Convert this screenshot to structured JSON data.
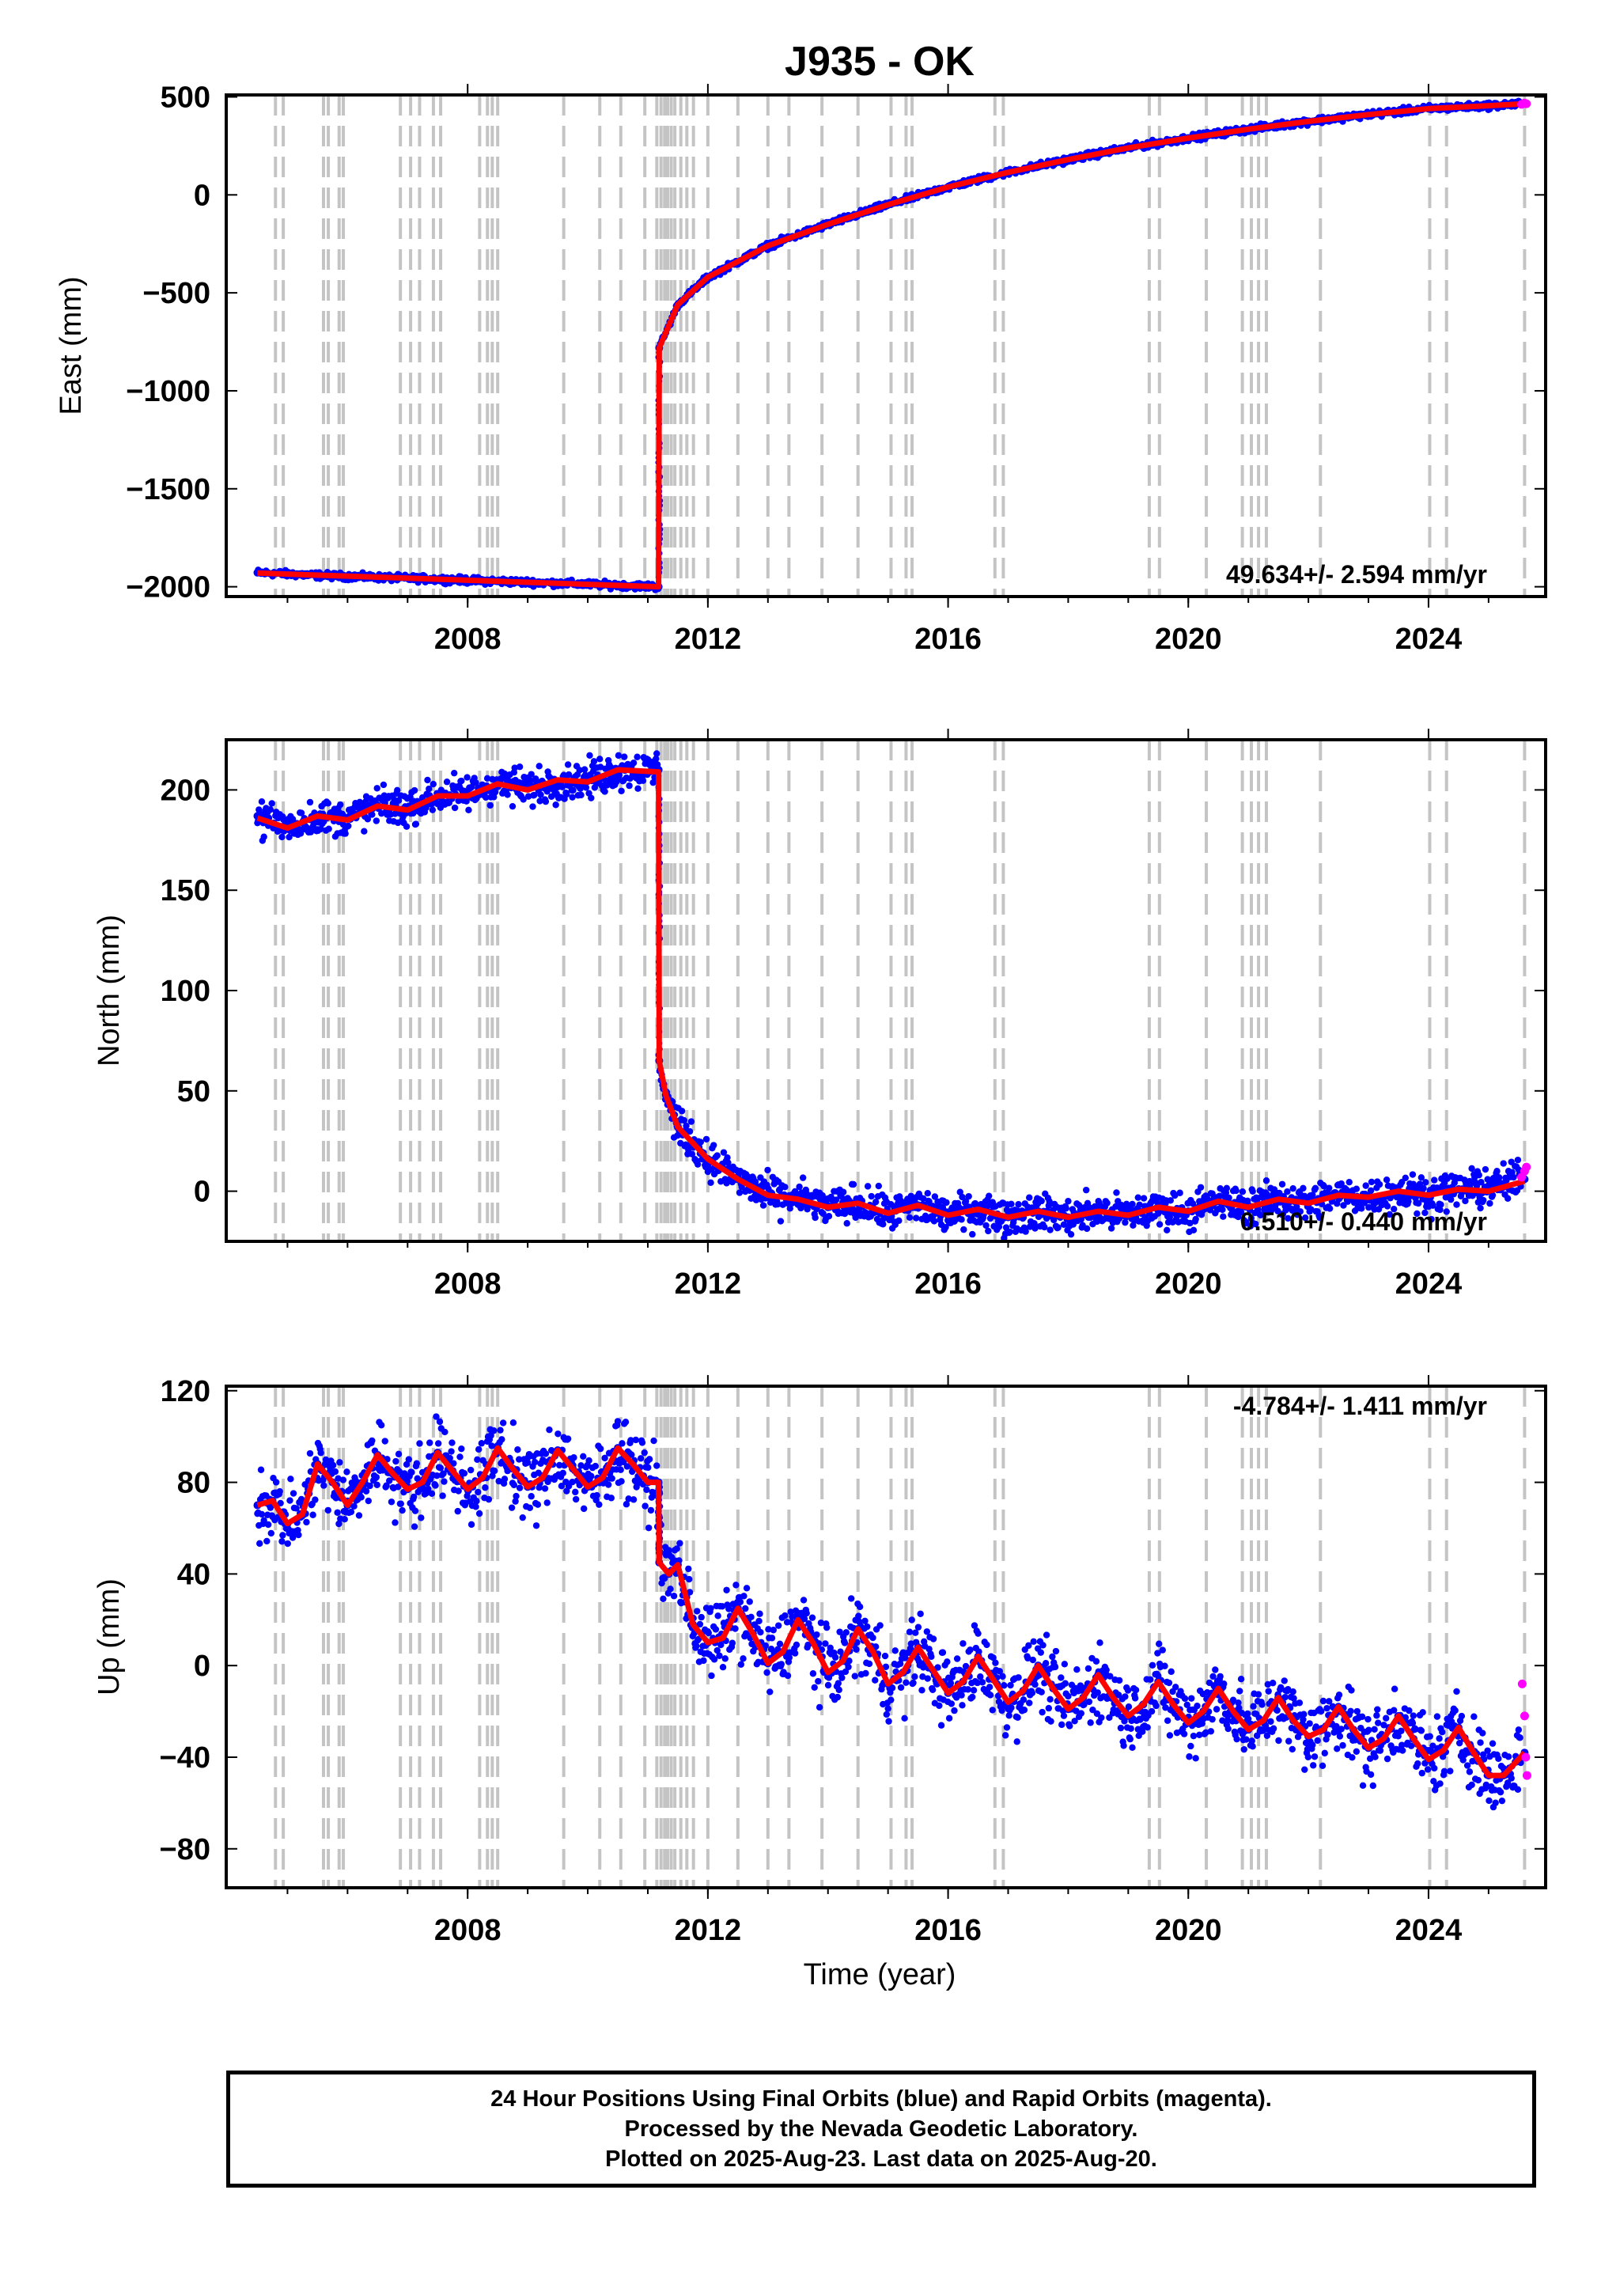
{
  "title": "J935 - OK",
  "xlabel": "Time (year)",
  "x_ticks": [
    2008,
    2012,
    2016,
    2020,
    2024
  ],
  "colors": {
    "final_orbits": "#0000ff",
    "rapid_orbits": "#ff00ff",
    "model_fit": "#ff0000",
    "event_lines": "#c4c4c4"
  },
  "event_years": [
    2004.8,
    2004.93,
    2005.6,
    2005.68,
    2005.86,
    2005.93,
    2006.88,
    2007.05,
    2007.2,
    2007.43,
    2007.55,
    2008.2,
    2008.33,
    2008.41,
    2008.5,
    2009.6,
    2010.2,
    2010.55,
    2010.95,
    2011.15,
    2011.22,
    2011.28,
    2011.33,
    2011.39,
    2011.45,
    2011.55,
    2011.65,
    2011.76,
    2012.0,
    2012.5,
    2013.0,
    2013.35,
    2013.9,
    2014.5,
    2015.05,
    2015.3,
    2015.4,
    2016.78,
    2016.92,
    2019.35,
    2019.52,
    2020.3,
    2020.9,
    2021.05,
    2021.17,
    2021.3,
    2022.2,
    2024.02,
    2024.3,
    2025.6
  ],
  "chart_data": [
    {
      "type": "scatter",
      "ylabel": "East (mm)",
      "rate": "49.634+/- 2.594 mm/yr",
      "xlim": [
        2003.98,
        2025.95
      ],
      "ylim": [
        -2050,
        510
      ],
      "y_ticks": [
        500,
        0,
        -500,
        -1000,
        -1500,
        -2000
      ],
      "series": [
        {
          "type": "scatter",
          "x": [
            2004.5,
            2005.5,
            2006.5,
            2007.5,
            2008.5,
            2009.5,
            2010.5,
            2011.18,
            2011.19,
            2011.5,
            2012.0,
            2013.0,
            2014.0,
            2015.0,
            2016.0,
            2017.0,
            2018.0,
            2019.0,
            2020.0,
            2021.0,
            2022.0,
            2023.0,
            2024.0,
            2025.0,
            2025.6
          ],
          "values": [
            -1928,
            -1942,
            -1952,
            -1962,
            -1972,
            -1982,
            -1992,
            -2000,
            -780,
            -560,
            -420,
            -260,
            -150,
            -50,
            40,
            115,
            180,
            240,
            290,
            335,
            375,
            410,
            440,
            455,
            465
          ]
        },
        {
          "type": "line",
          "x": [
            2004.5,
            2011.18,
            2011.19,
            2011.5,
            2012.0,
            2013.0,
            2014.0,
            2015.0,
            2016.0,
            2017.0,
            2018.0,
            2019.0,
            2020.0,
            2021.0,
            2022.0,
            2023.0,
            2024.0,
            2025.0,
            2025.6
          ],
          "values": [
            -1930,
            -2000,
            -780,
            -560,
            -420,
            -260,
            -150,
            -50,
            40,
            115,
            180,
            240,
            290,
            335,
            375,
            410,
            440,
            455,
            465
          ]
        },
        {
          "type": "scatter",
          "x": [
            2025.55,
            2025.6,
            2025.63
          ],
          "values": [
            462,
            468,
            465
          ]
        }
      ]
    },
    {
      "type": "scatter",
      "ylabel": "North (mm)",
      "rate": "0.510+/- 0.440 mm/yr",
      "xlim": [
        2003.98,
        2025.95
      ],
      "ylim": [
        -25,
        225
      ],
      "y_ticks": [
        200,
        150,
        100,
        50,
        0
      ],
      "series": [
        {
          "type": "scatter",
          "x": [
            2004.5,
            2005.0,
            2005.5,
            2006.0,
            2006.5,
            2007.0,
            2007.5,
            2008.0,
            2008.5,
            2009.0,
            2009.5,
            2010.0,
            2010.5,
            2011.18,
            2011.19,
            2011.3,
            2011.5,
            2012.0,
            2012.5,
            2013.0,
            2013.5,
            2014.0,
            2014.5,
            2015.0,
            2015.5,
            2016.0,
            2016.5,
            2017.0,
            2017.5,
            2018.0,
            2018.5,
            2019.0,
            2019.5,
            2020.0,
            2020.5,
            2021.0,
            2021.5,
            2022.0,
            2022.5,
            2023.0,
            2023.5,
            2024.0,
            2024.5,
            2025.0,
            2025.6
          ],
          "values": [
            187,
            182,
            186,
            186,
            192,
            191,
            197,
            198,
            203,
            201,
            204,
            205,
            210,
            210,
            65,
            48,
            32,
            16,
            6,
            -2,
            -4,
            -8,
            -6,
            -11,
            -7,
            -12,
            -9,
            -13,
            -10,
            -13,
            -10,
            -12,
            -8,
            -10,
            -5,
            -8,
            -4,
            -6,
            -2,
            -3,
            0,
            -2,
            1,
            2,
            6
          ]
        },
        {
          "type": "line",
          "x": [
            2004.5,
            2005.0,
            2005.5,
            2006.0,
            2006.5,
            2007.0,
            2007.5,
            2008.0,
            2008.5,
            2009.0,
            2009.5,
            2010.0,
            2010.5,
            2011.18,
            2011.19,
            2011.3,
            2011.5,
            2012.0,
            2012.5,
            2013.0,
            2013.5,
            2014.0,
            2014.5,
            2015.0,
            2015.5,
            2016.0,
            2016.5,
            2017.0,
            2017.5,
            2018.0,
            2018.5,
            2019.0,
            2019.5,
            2020.0,
            2020.5,
            2021.0,
            2021.5,
            2022.0,
            2022.5,
            2023.0,
            2023.5,
            2024.0,
            2024.5,
            2025.0,
            2025.6
          ],
          "values": [
            186,
            181,
            187,
            185,
            192,
            190,
            197,
            197,
            203,
            200,
            205,
            204,
            210,
            209,
            65,
            48,
            32,
            16,
            6,
            -2,
            -4,
            -8,
            -6,
            -11,
            -7,
            -12,
            -9,
            -13,
            -10,
            -13,
            -10,
            -12,
            -8,
            -10,
            -5,
            -8,
            -4,
            -6,
            -2,
            -3,
            0,
            -2,
            1,
            0,
            5
          ]
        },
        {
          "type": "scatter",
          "x": [
            2025.55,
            2025.6,
            2025.63
          ],
          "values": [
            7,
            10,
            12
          ]
        }
      ]
    },
    {
      "type": "scatter",
      "ylabel": "Up (mm)",
      "rate": "-4.784+/- 1.411 mm/yr",
      "xlim": [
        2003.98,
        2025.95
      ],
      "ylim": [
        -97,
        122
      ],
      "y_ticks": [
        120,
        80,
        40,
        0,
        -40,
        -80
      ],
      "series": [
        {
          "type": "scatter",
          "x": [
            2004.5,
            2004.75,
            2005.0,
            2005.25,
            2005.5,
            2005.75,
            2006.0,
            2006.25,
            2006.5,
            2006.75,
            2007.0,
            2007.25,
            2007.5,
            2007.75,
            2008.0,
            2008.25,
            2008.5,
            2008.75,
            2009.0,
            2009.25,
            2009.5,
            2009.75,
            2010.0,
            2010.25,
            2010.5,
            2010.75,
            2011.0,
            2011.18,
            2011.19,
            2011.35,
            2011.5,
            2011.75,
            2012.0,
            2012.25,
            2012.5,
            2012.75,
            2013.0,
            2013.25,
            2013.5,
            2013.75,
            2014.0,
            2014.25,
            2014.5,
            2014.75,
            2015.0,
            2015.25,
            2015.5,
            2015.75,
            2016.0,
            2016.25,
            2016.5,
            2016.75,
            2017.0,
            2017.25,
            2017.5,
            2017.75,
            2018.0,
            2018.25,
            2018.5,
            2018.75,
            2019.0,
            2019.25,
            2019.5,
            2019.75,
            2020.0,
            2020.25,
            2020.5,
            2020.75,
            2021.0,
            2021.25,
            2021.5,
            2021.75,
            2022.0,
            2022.25,
            2022.5,
            2022.75,
            2023.0,
            2023.25,
            2023.5,
            2023.75,
            2024.0,
            2024.25,
            2024.5,
            2024.75,
            2025.0,
            2025.25,
            2025.6
          ],
          "values": [
            70,
            72,
            62,
            66,
            88,
            80,
            70,
            80,
            92,
            84,
            77,
            80,
            93,
            85,
            77,
            82,
            95,
            86,
            78,
            82,
            94,
            86,
            78,
            82,
            95,
            88,
            80,
            80,
            45,
            40,
            44,
            18,
            10,
            12,
            25,
            14,
            1,
            6,
            20,
            10,
            -3,
            2,
            16,
            6,
            -8,
            -3,
            8,
            -2,
            -12,
            -7,
            4,
            -6,
            -16,
            -11,
            0,
            -10,
            -19,
            -14,
            -4,
            -14,
            -22,
            -17,
            -7,
            -17,
            -25,
            -20,
            -10,
            -20,
            -28,
            -24,
            -14,
            -24,
            -31,
            -28,
            -18,
            -28,
            -36,
            -32,
            -22,
            -32,
            -41,
            -37,
            -27,
            -38,
            -48,
            -48,
            -38
          ]
        },
        {
          "type": "line",
          "x": [
            2004.5,
            2004.75,
            2005.0,
            2005.25,
            2005.5,
            2005.75,
            2006.0,
            2006.25,
            2006.5,
            2006.75,
            2007.0,
            2007.25,
            2007.5,
            2007.75,
            2008.0,
            2008.25,
            2008.5,
            2008.75,
            2009.0,
            2009.25,
            2009.5,
            2009.75,
            2010.0,
            2010.25,
            2010.5,
            2010.75,
            2011.0,
            2011.18,
            2011.19,
            2011.35,
            2011.5,
            2011.75,
            2012.0,
            2012.25,
            2012.5,
            2012.75,
            2013.0,
            2013.25,
            2013.5,
            2013.75,
            2014.0,
            2014.25,
            2014.5,
            2014.75,
            2015.0,
            2015.25,
            2015.5,
            2015.75,
            2016.0,
            2016.25,
            2016.5,
            2016.75,
            2017.0,
            2017.25,
            2017.5,
            2017.75,
            2018.0,
            2018.25,
            2018.5,
            2018.75,
            2019.0,
            2019.25,
            2019.5,
            2019.75,
            2020.0,
            2020.25,
            2020.5,
            2020.75,
            2021.0,
            2021.25,
            2021.5,
            2021.75,
            2022.0,
            2022.25,
            2022.5,
            2022.75,
            2023.0,
            2023.25,
            2023.5,
            2023.75,
            2024.0,
            2024.25,
            2024.5,
            2024.75,
            2025.0,
            2025.25,
            2025.6
          ],
          "values": [
            70,
            72,
            62,
            66,
            88,
            80,
            70,
            80,
            92,
            84,
            77,
            80,
            93,
            85,
            77,
            82,
            95,
            86,
            78,
            82,
            94,
            86,
            78,
            82,
            95,
            88,
            80,
            80,
            45,
            40,
            44,
            18,
            10,
            12,
            25,
            14,
            1,
            6,
            20,
            10,
            -3,
            2,
            16,
            6,
            -8,
            -3,
            8,
            -2,
            -12,
            -7,
            4,
            -6,
            -16,
            -11,
            0,
            -10,
            -19,
            -14,
            -4,
            -14,
            -22,
            -17,
            -7,
            -17,
            -25,
            -20,
            -10,
            -20,
            -28,
            -24,
            -14,
            -24,
            -31,
            -28,
            -18,
            -28,
            -36,
            -32,
            -22,
            -32,
            -41,
            -37,
            -27,
            -38,
            -48,
            -48,
            -38
          ]
        },
        {
          "type": "scatter",
          "x": [
            2025.56,
            2025.6,
            2025.62,
            2025.64
          ],
          "values": [
            -8,
            -22,
            -40,
            -48
          ]
        }
      ]
    }
  ],
  "footer": {
    "line1": "24 Hour Positions Using Final Orbits (blue) and Rapid Orbits (magenta).",
    "line2": "Processed by the Nevada Geodetic Laboratory.",
    "line3": "Plotted on 2025-Aug-23. Last data on 2025-Aug-20."
  }
}
